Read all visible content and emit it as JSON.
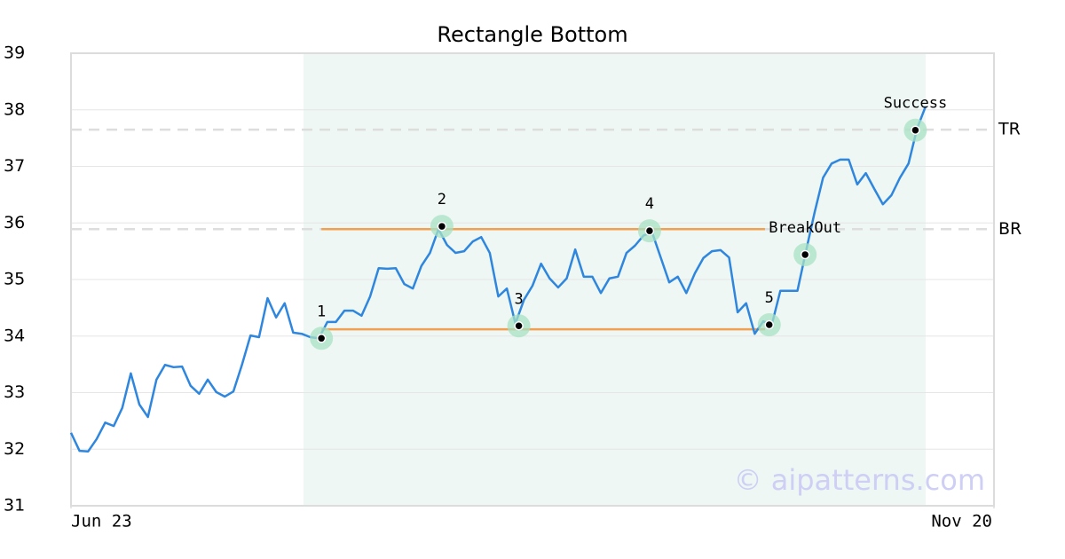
{
  "chart_data": {
    "type": "line",
    "title": "Rectangle Bottom",
    "watermark": "© aipatterns.com",
    "x": [
      0,
      1,
      2,
      3,
      4,
      5,
      6,
      7,
      8,
      9,
      10,
      11,
      12,
      13,
      14,
      15,
      16,
      17,
      18,
      19,
      20,
      21,
      22,
      23,
      24,
      25,
      26,
      27,
      28,
      29,
      30,
      31,
      32,
      33,
      34,
      35,
      36,
      37,
      38,
      39,
      40,
      41,
      42,
      43,
      44,
      45,
      46,
      47,
      48,
      49,
      50,
      51,
      52,
      53,
      54,
      55,
      56,
      57,
      58,
      59,
      60,
      61,
      62,
      63,
      64,
      65,
      66,
      67,
      68,
      69,
      70,
      71,
      72,
      73,
      74,
      75,
      76,
      77,
      78,
      79,
      80,
      81,
      82,
      83,
      84,
      85,
      86,
      87,
      88,
      89,
      90,
      91,
      92,
      93,
      94,
      95,
      96,
      97,
      98,
      99,
      100
    ],
    "series": [
      {
        "color": "#2e86de",
        "values": [
          32.29,
          31.97,
          31.96,
          32.18,
          32.47,
          32.41,
          32.73,
          33.34,
          32.79,
          32.57,
          33.23,
          33.49,
          33.45,
          33.46,
          33.12,
          32.98,
          33.23,
          33.01,
          32.93,
          33.02,
          33.49,
          34.01,
          33.98,
          34.67,
          34.33,
          34.58,
          34.06,
          34.04,
          33.98,
          33.96,
          34.25,
          34.25,
          34.45,
          34.45,
          34.36,
          34.7,
          35.2,
          35.19,
          35.2,
          34.92,
          34.84,
          35.24,
          35.47,
          35.89,
          35.61,
          35.47,
          35.5,
          35.67,
          35.75,
          35.47,
          34.7,
          34.84,
          34.22,
          34.64,
          34.89,
          35.28,
          35.02,
          34.86,
          35.02,
          35.53,
          35.05,
          35.05,
          34.76,
          35.02,
          35.05,
          35.47,
          35.6,
          35.78,
          35.83,
          35.39,
          34.95,
          35.05,
          34.76,
          35.11,
          35.38,
          35.5,
          35.52,
          35.39,
          34.42,
          34.58,
          34.04,
          34.26,
          34.2,
          34.8,
          34.8,
          34.8,
          35.5,
          36.18,
          36.8,
          37.05,
          37.12,
          37.12,
          36.68,
          36.88,
          36.6,
          36.33,
          36.49,
          36.8,
          37.05,
          37.67,
          38.06
        ]
      }
    ],
    "xlim": [
      0,
      108
    ],
    "xticks": [
      {
        "value": 0,
        "label": "Jun 23"
      },
      {
        "value": 108,
        "label": "Nov 20"
      }
    ],
    "ylim": [
      31,
      39
    ],
    "yticks": [
      31,
      32,
      33,
      34,
      35,
      36,
      37,
      38,
      39
    ],
    "grid": true,
    "highlight": {
      "x": [
        27.2,
        100
      ],
      "color": "#eef7f3"
    },
    "rectangle": {
      "x": [
        29.3,
        81.2
      ],
      "top": 35.89,
      "bottom": 34.12,
      "color": "#f0a050"
    },
    "levels": [
      {
        "label": "TR",
        "value": 37.65
      },
      {
        "label": "BR",
        "value": 35.89
      }
    ],
    "points": [
      {
        "label": "1",
        "x": 29.3,
        "y": 33.96
      },
      {
        "label": "2",
        "x": 43.4,
        "y": 35.94
      },
      {
        "label": "3",
        "x": 52.4,
        "y": 34.18
      },
      {
        "label": "4",
        "x": 67.7,
        "y": 35.86
      },
      {
        "label": "5",
        "x": 81.7,
        "y": 34.2
      },
      {
        "label": "BreakOut",
        "x": 85.9,
        "y": 35.44
      },
      {
        "label": "Success",
        "x": 98.8,
        "y": 37.64
      }
    ]
  }
}
